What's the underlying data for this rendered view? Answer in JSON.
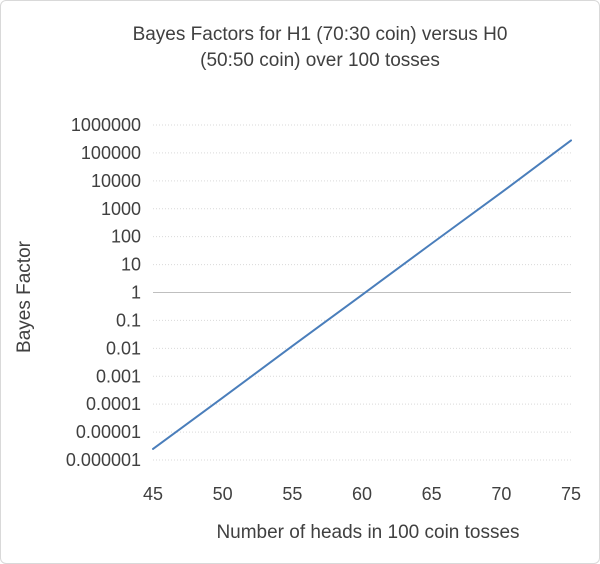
{
  "chart_data": {
    "type": "line",
    "title_lines": [
      "Bayes Factors for H1 (70:30 coin) versus H0",
      "(50:50 coin) over 100 tosses"
    ],
    "xlabel": "Number of heads in 100 coin tosses",
    "ylabel": "Bayes Factor",
    "x_ticks": [
      "45",
      "50",
      "55",
      "60",
      "65",
      "70",
      "75"
    ],
    "y_ticks": [
      "0.000001",
      "0.00001",
      "0.0001",
      "0.001",
      "0.01",
      "0.1",
      "1",
      "10",
      "100",
      "1000",
      "10000",
      "100000",
      "1000000"
    ],
    "y_scale": "log",
    "xlim": [
      45,
      75
    ],
    "ylim": [
      1e-06,
      1000000
    ],
    "grid": true,
    "series": [
      {
        "color": "#4a7ebb",
        "x": [
          45,
          50,
          55,
          60,
          65,
          70,
          75
        ],
        "y": [
          2.5e-06,
          0.00017,
          0.012,
          0.82,
          57,
          3800,
          280000
        ]
      }
    ]
  }
}
